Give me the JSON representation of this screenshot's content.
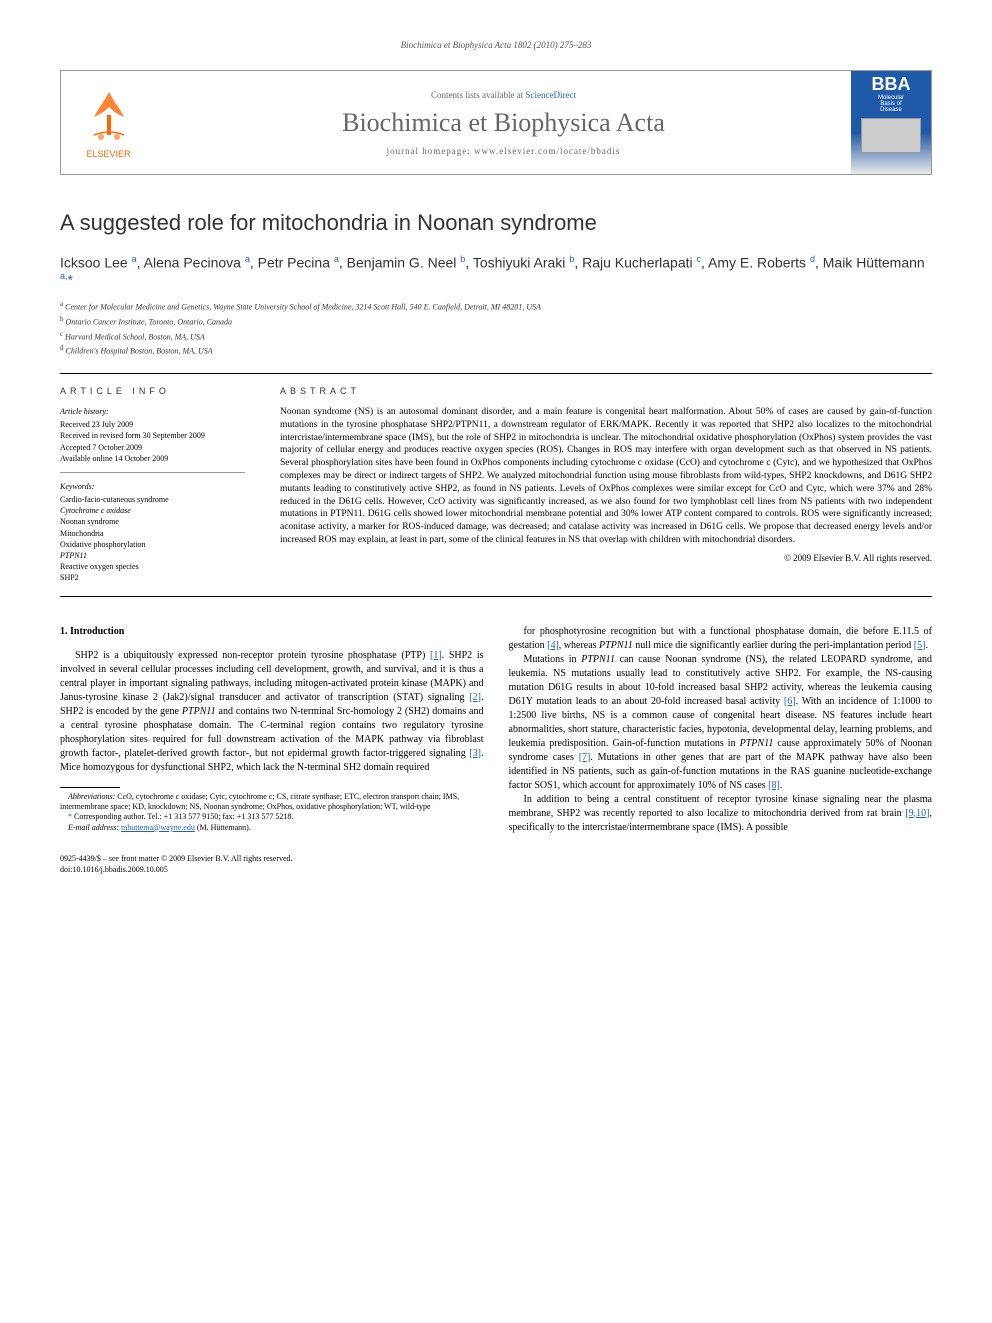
{
  "running_header": "Biochimica et Biophysica Acta 1802 (2010) 275–283",
  "header": {
    "contents_prefix": "Contents lists available at ",
    "contents_link": "ScienceDirect",
    "journal_title": "Biochimica et Biophysica Acta",
    "homepage_prefix": "journal homepage: ",
    "homepage_url": "www.elsevier.com/locate/bbadis",
    "publisher": "ELSEVIER",
    "cover_abbrev": "BBA",
    "cover_sub1": "Molecular",
    "cover_sub2": "Basis of",
    "cover_sub3": "Disease"
  },
  "article": {
    "title": "A suggested role for mitochondria in Noonan syndrome",
    "authors_html": "Icksoo Lee <sup>a</sup>, Alena Pecinova <sup>a</sup>, Petr Pecina <sup>a</sup>, Benjamin G. Neel <sup>b</sup>, Toshiyuki Araki <sup>b</sup>, Raju Kucherlapati <sup>c</sup>, Amy E. Roberts <sup>d</sup>, Maik Hüttemann <sup>a,</sup><span class='corresp-star'>*</span>",
    "affiliations": [
      {
        "sup": "a",
        "text": "Center for Molecular Medicine and Genetics, Wayne State University School of Medicine, 3214 Scott Hall, 540 E. Canfield, Detroit, MI 48201, USA"
      },
      {
        "sup": "b",
        "text": "Ontario Cancer Institute, Toronto, Ontario, Canada"
      },
      {
        "sup": "c",
        "text": "Harvard Medical School, Boston, MA, USA"
      },
      {
        "sup": "d",
        "text": "Children's Hospital Boston, Boston, MA, USA"
      }
    ]
  },
  "info": {
    "label": "ARTICLE INFO",
    "history_label": "Article history:",
    "history": [
      "Received 23 July 2009",
      "Received in revised form 30 September 2009",
      "Accepted 7 October 2009",
      "Available online 14 October 2009"
    ],
    "keywords_label": "Keywords:",
    "keywords": [
      "Cardio-facio-cutaneous syndrome",
      "Cytochrome c oxidase",
      "Noonan syndrome",
      "Mitochondria",
      "Oxidative phosphorylation",
      "PTPN11",
      "Reactive oxygen species",
      "SHP2"
    ]
  },
  "abstract": {
    "label": "ABSTRACT",
    "text": "Noonan syndrome (NS) is an autosomal dominant disorder, and a main feature is congenital heart malformation. About 50% of cases are caused by gain-of-function mutations in the tyrosine phosphatase SHP2/PTPN11, a downstream regulator of ERK/MAPK. Recently it was reported that SHP2 also localizes to the mitochondrial intercristae/intermembrane space (IMS), but the role of SHP2 in mitochondria is unclear. The mitochondrial oxidative phosphorylation (OxPhos) system provides the vast majority of cellular energy and produces reactive oxygen species (ROS). Changes in ROS may interfere with organ development such as that observed in NS patients. Several phosphorylation sites have been found in OxPhos components including cytochrome c oxidase (CcO) and cytochrome c (Cytc), and we hypothesized that OxPhos complexes may be direct or indirect targets of SHP2. We analyzed mitochondrial function using mouse fibroblasts from wild-types, SHP2 knockdowns, and D61G SHP2 mutants leading to constitutively active SHP2, as found in NS patients. Levels of OxPhos complexes were similar except for CcO and Cytc, which were 37% and 28% reduced in the D61G cells. However, CcO activity was significantly increased, as we also found for two lymphoblast cell lines from NS patients with two independent mutations in PTPN11. D61G cells showed lower mitochondrial membrane potential and 30% lower ATP content compared to controls. ROS were significantly increased; aconitase activity, a marker for ROS-induced damage, was decreased; and catalase activity was increased in D61G cells. We propose that decreased energy levels and/or increased ROS may explain, at least in part, some of the clinical features in NS that overlap with children with mitochondrial disorders.",
    "copyright": "© 2009 Elsevier B.V. All rights reserved."
  },
  "body": {
    "heading": "1. Introduction",
    "p1": "SHP2 is a ubiquitously expressed non-receptor protein tyrosine phosphatase (PTP) [1]. SHP2 is involved in several cellular processes including cell development, growth, and survival, and it is thus a central player in important signaling pathways, including mitogen-activated protein kinase (MAPK) and Janus-tyrosine kinase 2 (Jak2)/signal transducer and activator of transcription (STAT) signaling [2]. SHP2 is encoded by the gene PTPN11 and contains two N-terminal Src-homology 2 (SH2) domains and a central tyrosine phosphatase domain. The C-terminal region contains two regulatory tyrosine phosphorylation sites required for full downstream activation of the MAPK pathway via fibroblast growth factor-, platelet-derived growth factor-, but not epidermal growth factor-triggered signaling [3]. Mice homozygous for dysfunctional SHP2, which lack the N-terminal SH2 domain required",
    "p2": "for phosphotyrosine recognition but with a functional phosphatase domain, die before E.11.5 of gestation [4], whereas PTPN11 null mice die significantly earlier during the peri-implantation period [5].",
    "p3": "Mutations in PTPN11 can cause Noonan syndrome (NS), the related LEOPARD syndrome, and leukemia. NS mutations usually lead to constitutively active SHP2. For example, the NS-causing mutation D61G results in about 10-fold increased basal SHP2 activity, whereas the leukemia causing D61Y mutation leads to an about 20-fold increased basal activity [6]. With an incidence of 1:1000 to 1:2500 live births, NS is a common cause of congenital heart disease. NS features include heart abnormalities, short stature, characteristic facies, hypotonia, developmental delay, learning problems, and leukemia predisposition. Gain-of-function mutations in PTPN11 cause approximately 50% of Noonan syndrome cases [7]. Mutations in other genes that are part of the MAPK pathway have also been identified in NS patients, such as gain-of-function mutations in the RAS guanine nucleotide-exchange factor SOS1, which account for approximately 10% of NS cases [8].",
    "p4": "In addition to being a central constituent of receptor tyrosine kinase signaling near the plasma membrane, SHP2 was recently reported to also localize to mitochondria derived from rat brain [9,10], specifically to the intercristae/intermembrane space (IMS). A possible"
  },
  "footnotes": {
    "abbrev_label": "Abbreviations:",
    "abbrev": "CcO, cytochrome c oxidase; Cytc, cytochrome c; CS, citrate synthase; ETC, electron transport chain; IMS, intermembrane space; KD, knockdown; NS, Noonan syndrome; OxPhos, oxidative phosphorylation; WT, wild-type",
    "corresp": "Corresponding author. Tel.: +1 313 577 9150; fax: +1 313 577 5218.",
    "email_label": "E-mail address:",
    "email": "mhuttema@wayne.edu",
    "email_name": "(M. Hüttemann)."
  },
  "footer": {
    "line1": "0925-4439/$ – see front matter © 2009 Elsevier B.V. All rights reserved.",
    "line2": "doi:10.1016/j.bbadis.2009.10.005"
  },
  "colors": {
    "link": "#2060c0",
    "elsevier_orange": "#ff6600",
    "cover_blue": "#1e5aa8"
  }
}
